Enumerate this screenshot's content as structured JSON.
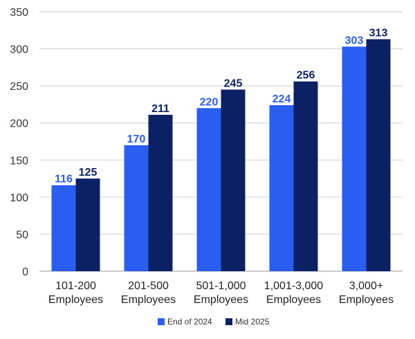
{
  "chart_data": {
    "type": "bar",
    "categories": [
      [
        "101-200",
        "Employees"
      ],
      [
        "201-500",
        "Employees"
      ],
      [
        "501-1,000",
        "Employees"
      ],
      [
        "1,001-3,000",
        "Employees"
      ],
      [
        "3,000+",
        "Employees"
      ]
    ],
    "series": [
      {
        "name": "End of 2024",
        "values": [
          116,
          170,
          220,
          224,
          303
        ],
        "color": "#2a5ef0",
        "label_color": "#2a5ef0"
      },
      {
        "name": "Mid 2025",
        "values": [
          125,
          211,
          245,
          256,
          313
        ],
        "color": "#0c2163",
        "label_color": "#0c2163"
      }
    ],
    "ylim": [
      0,
      350
    ],
    "yticks": [
      0,
      50,
      100,
      150,
      200,
      250,
      300,
      350
    ],
    "grid": true,
    "legend": "bottom-center",
    "xlabel": "",
    "ylabel": "",
    "title": ""
  }
}
